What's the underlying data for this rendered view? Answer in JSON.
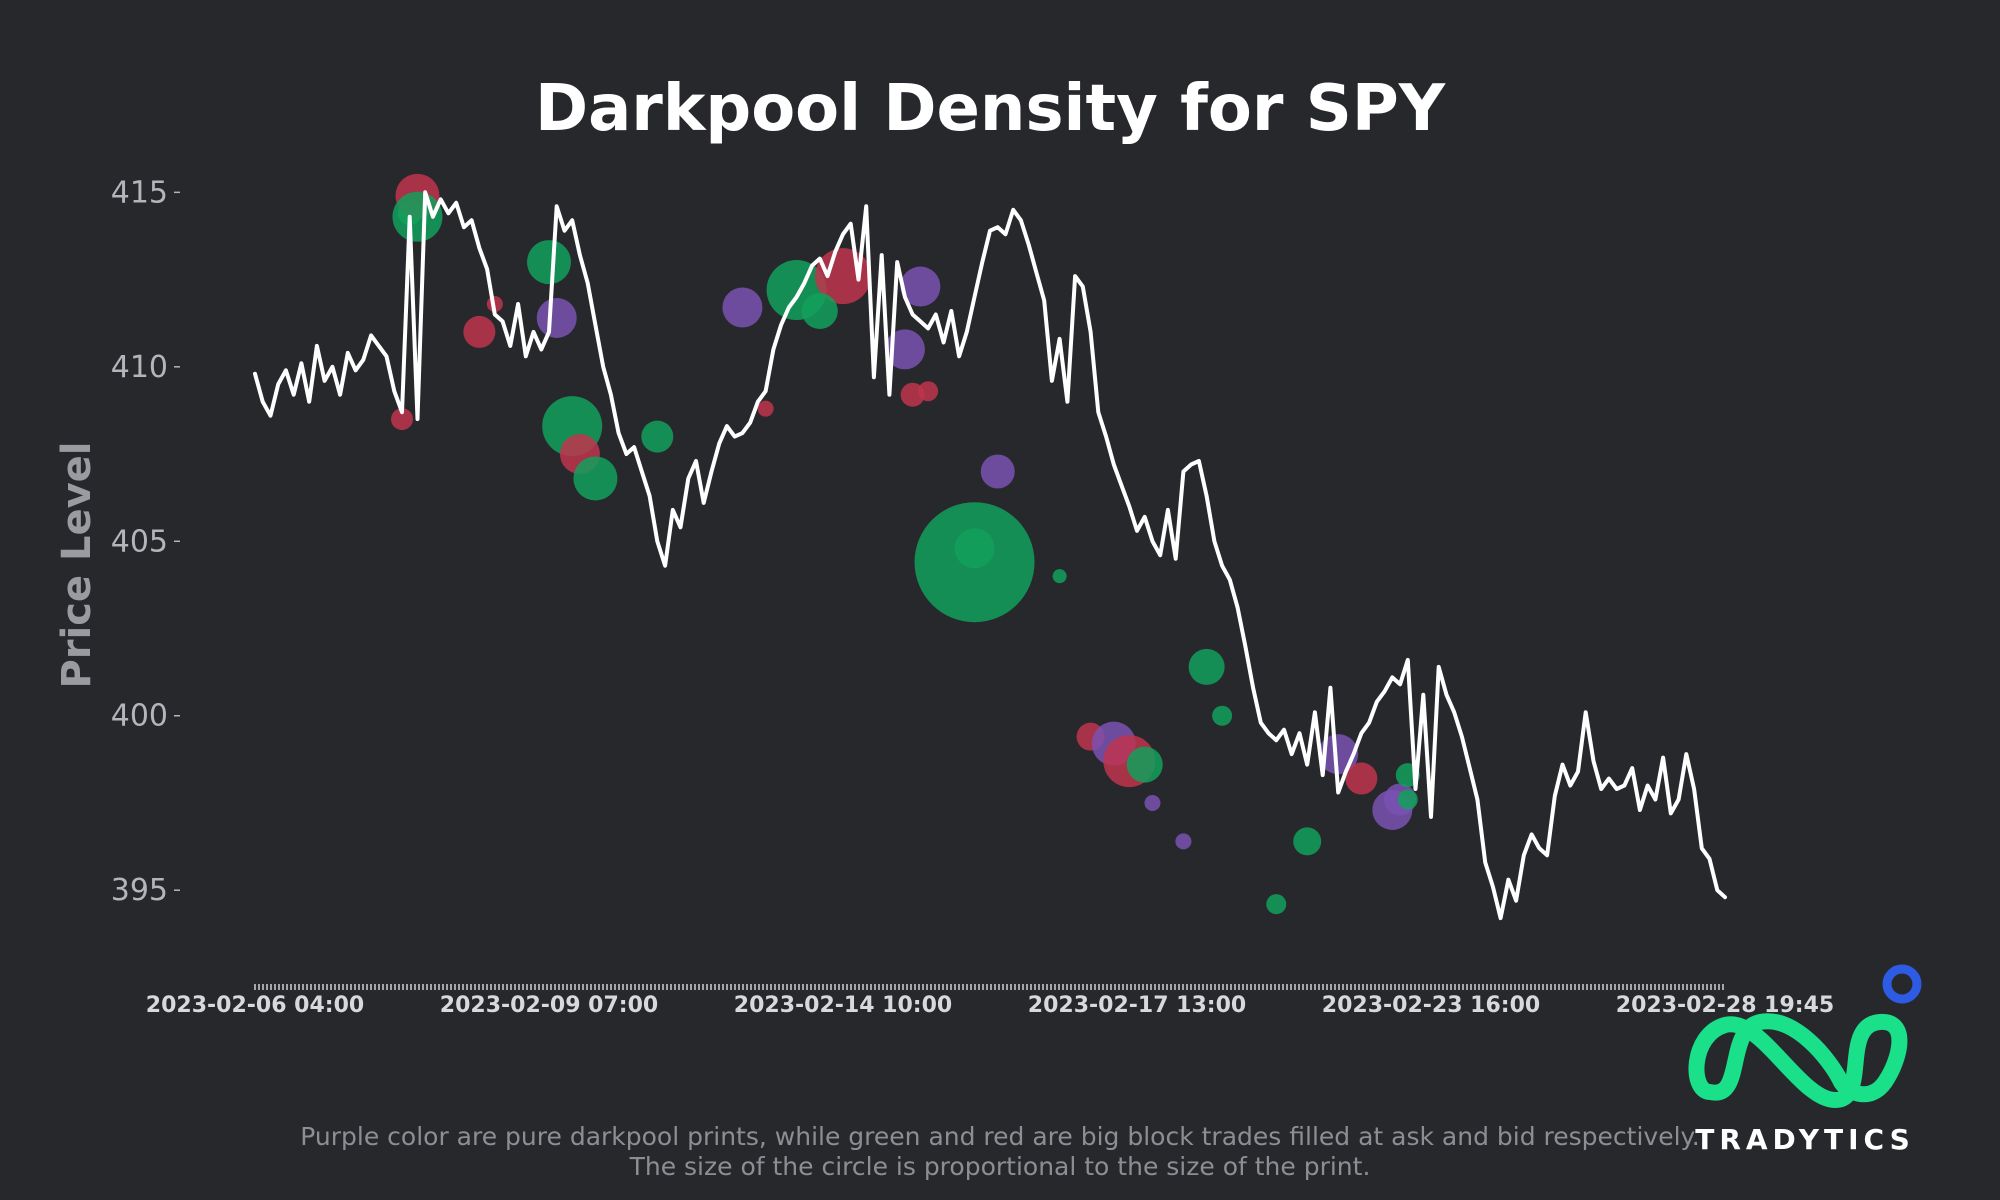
{
  "chart_data": {
    "type": "scatter",
    "title": "Darkpool Density for SPY",
    "ylabel": "Price Level",
    "ylim": [
      393,
      416.5
    ],
    "yticks": [
      395,
      400,
      405,
      410,
      415
    ],
    "xtick_labels": [
      "2023-02-06 04:00",
      "2023-02-09 07:00",
      "2023-02-14 10:00",
      "2023-02-17 13:00",
      "2023-02-23 16:00",
      "2023-02-28 19:45"
    ],
    "price_series": {
      "color": "#ffffff",
      "values": [
        409.8,
        409.0,
        408.6,
        409.5,
        409.9,
        409.2,
        410.1,
        409.0,
        410.6,
        409.6,
        410.0,
        409.2,
        410.4,
        409.9,
        410.2,
        410.9,
        410.6,
        410.3,
        409.3,
        408.7,
        414.3,
        408.5,
        415.0,
        414.3,
        414.8,
        414.4,
        414.7,
        414.0,
        414.2,
        413.4,
        412.8,
        411.5,
        411.3,
        410.6,
        411.8,
        410.3,
        411.0,
        410.5,
        411.0,
        414.6,
        413.9,
        414.2,
        413.2,
        412.4,
        411.2,
        410.0,
        409.2,
        408.1,
        407.5,
        407.7,
        407.0,
        406.3,
        405.0,
        404.3,
        405.9,
        405.4,
        406.8,
        407.3,
        406.1,
        407.0,
        407.8,
        408.3,
        408.0,
        408.1,
        408.4,
        409.0,
        409.3,
        410.5,
        411.2,
        411.7,
        412.0,
        412.4,
        412.9,
        413.1,
        412.6,
        413.3,
        413.8,
        414.1,
        412.5,
        414.6,
        409.7,
        413.2,
        409.2,
        413.0,
        412.0,
        411.5,
        411.3,
        411.1,
        411.5,
        410.7,
        411.6,
        410.3,
        411.0,
        412.0,
        413.0,
        413.9,
        414.0,
        413.8,
        414.5,
        414.2,
        413.5,
        412.7,
        411.9,
        409.6,
        410.8,
        409.0,
        412.6,
        412.3,
        411.0,
        408.7,
        408.0,
        407.2,
        406.6,
        406.0,
        405.3,
        405.7,
        405.0,
        404.6,
        405.9,
        404.5,
        407.0,
        407.2,
        407.3,
        406.3,
        405.0,
        404.3,
        403.9,
        403.1,
        402.0,
        400.8,
        399.8,
        399.5,
        399.3,
        399.6,
        398.9,
        399.5,
        398.6,
        400.1,
        398.3,
        400.8,
        397.8,
        398.4,
        398.9,
        399.5,
        399.8,
        400.4,
        400.7,
        401.1,
        400.9,
        401.6,
        397.9,
        400.6,
        397.1,
        401.4,
        400.6,
        400.1,
        399.4,
        398.5,
        397.6,
        395.8,
        395.1,
        394.2,
        395.3,
        394.7,
        396.0,
        396.6,
        396.2,
        396.0,
        397.7,
        398.6,
        398.0,
        398.4,
        400.1,
        398.7,
        397.9,
        398.2,
        397.9,
        398.0,
        398.5,
        397.3,
        398.0,
        397.6,
        398.8,
        397.2,
        397.6,
        398.9,
        397.9,
        396.2,
        395.9,
        395.0,
        394.8
      ]
    },
    "prints": {
      "legend": [
        {
          "name": "pure darkpool print",
          "color": "#7a52b3"
        },
        {
          "name": "block trade filled at ask",
          "color": "#12a05c"
        },
        {
          "name": "block trade filled at bid",
          "color": "#c0344e"
        }
      ],
      "points": [
        {
          "i": 19,
          "y": 408.5,
          "r": 11,
          "color": "#c0344e"
        },
        {
          "i": 20,
          "y": 414.4,
          "r": 12,
          "color": "#12a05c"
        },
        {
          "i": 21,
          "y": 414.9,
          "r": 22,
          "color": "#c0344e"
        },
        {
          "i": 21,
          "y": 414.3,
          "r": 25,
          "color": "#12a05c"
        },
        {
          "i": 29,
          "y": 411.0,
          "r": 16,
          "color": "#c0344e"
        },
        {
          "i": 31,
          "y": 411.8,
          "r": 8,
          "color": "#c0344e"
        },
        {
          "i": 38,
          "y": 413.0,
          "r": 22,
          "color": "#12a05c"
        },
        {
          "i": 39,
          "y": 411.4,
          "r": 20,
          "color": "#7a52b3"
        },
        {
          "i": 41,
          "y": 408.3,
          "r": 30,
          "color": "#12a05c"
        },
        {
          "i": 42,
          "y": 407.5,
          "r": 20,
          "color": "#c0344e"
        },
        {
          "i": 44,
          "y": 406.8,
          "r": 22,
          "color": "#12a05c"
        },
        {
          "i": 52,
          "y": 408.0,
          "r": 16,
          "color": "#12a05c"
        },
        {
          "i": 63,
          "y": 411.7,
          "r": 20,
          "color": "#7a52b3"
        },
        {
          "i": 66,
          "y": 408.8,
          "r": 8,
          "color": "#c0344e"
        },
        {
          "i": 70,
          "y": 412.2,
          "r": 30,
          "color": "#12a05c"
        },
        {
          "i": 76,
          "y": 412.6,
          "r": 28,
          "color": "#c0344e"
        },
        {
          "i": 73,
          "y": 411.6,
          "r": 18,
          "color": "#12a05c"
        },
        {
          "i": 84,
          "y": 410.5,
          "r": 20,
          "color": "#7a52b3"
        },
        {
          "i": 86,
          "y": 412.3,
          "r": 20,
          "color": "#7a52b3"
        },
        {
          "i": 85,
          "y": 409.2,
          "r": 12,
          "color": "#c0344e"
        },
        {
          "i": 87,
          "y": 409.3,
          "r": 10,
          "color": "#c0344e"
        },
        {
          "i": 93,
          "y": 404.4,
          "r": 60,
          "color": "#12a05c"
        },
        {
          "i": 93,
          "y": 404.8,
          "r": 20,
          "color": "#12a05c"
        },
        {
          "i": 96,
          "y": 407.0,
          "r": 17,
          "color": "#7a52b3"
        },
        {
          "i": 104,
          "y": 404.0,
          "r": 7,
          "color": "#12a05c"
        },
        {
          "i": 108,
          "y": 399.4,
          "r": 14,
          "color": "#c0344e"
        },
        {
          "i": 111,
          "y": 399.2,
          "r": 22,
          "color": "#7a52b3"
        },
        {
          "i": 113,
          "y": 398.7,
          "r": 26,
          "color": "#c0344e"
        },
        {
          "i": 115,
          "y": 398.6,
          "r": 18,
          "color": "#12a05c"
        },
        {
          "i": 116,
          "y": 397.5,
          "r": 8,
          "color": "#7a52b3"
        },
        {
          "i": 120,
          "y": 396.4,
          "r": 8,
          "color": "#7a52b3"
        },
        {
          "i": 123,
          "y": 401.4,
          "r": 18,
          "color": "#12a05c"
        },
        {
          "i": 125,
          "y": 400.0,
          "r": 10,
          "color": "#12a05c"
        },
        {
          "i": 132,
          "y": 394.6,
          "r": 10,
          "color": "#12a05c"
        },
        {
          "i": 136,
          "y": 396.4,
          "r": 14,
          "color": "#12a05c"
        },
        {
          "i": 140,
          "y": 398.9,
          "r": 20,
          "color": "#7a52b3"
        },
        {
          "i": 143,
          "y": 398.2,
          "r": 16,
          "color": "#c0344e"
        },
        {
          "i": 147,
          "y": 397.3,
          "r": 20,
          "color": "#7a52b3"
        },
        {
          "i": 148,
          "y": 397.6,
          "r": 16,
          "color": "#7a52b3"
        },
        {
          "i": 149,
          "y": 398.3,
          "r": 12,
          "color": "#12a05c"
        },
        {
          "i": 149,
          "y": 397.6,
          "r": 10,
          "color": "#12a05c"
        }
      ]
    }
  },
  "footnote": {
    "line1": "Purple color are pure darkpool prints, while green and red are big block trades filled at ask and bid respectively.",
    "line2": "The size of the circle is proportional to the size of the print."
  },
  "brand": {
    "name": "TRADYTICS",
    "logo_color": "#19e089",
    "dot_color": "#2d5be3"
  }
}
